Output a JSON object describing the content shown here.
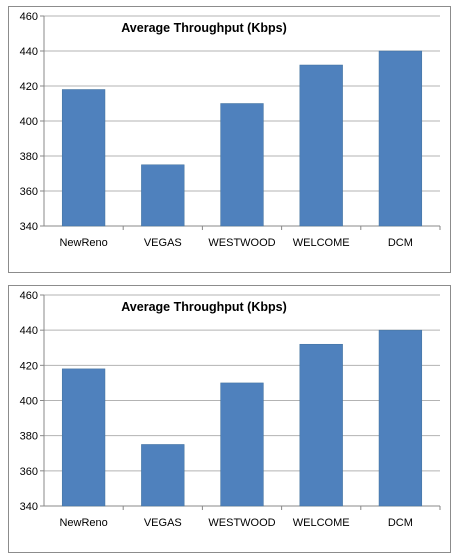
{
  "chart_data": [
    {
      "type": "bar",
      "title": "Average Throughput (Kbps)",
      "categories": [
        "NewReno",
        "VEGAS",
        "WESTWOOD",
        "WELCOME",
        "DCM"
      ],
      "values": [
        418,
        375,
        410,
        432,
        440
      ],
      "ylim": [
        340,
        460
      ],
      "yticks": [
        "340",
        "360",
        "380",
        "400",
        "420",
        "440",
        "460"
      ],
      "grid": true,
      "legend": "none",
      "bar_color": "#4F81BD",
      "grid_color": "#b3b3b3"
    },
    {
      "type": "bar",
      "title": "Average Throughput (Kbps)",
      "categories": [
        "NewReno",
        "VEGAS",
        "WESTWOOD",
        "WELCOME",
        "DCM"
      ],
      "values": [
        418,
        375,
        410,
        432,
        440
      ],
      "ylim": [
        340,
        460
      ],
      "yticks": [
        "340",
        "360",
        "380",
        "400",
        "420",
        "440",
        "460"
      ],
      "grid": true,
      "legend": "none",
      "bar_color": "#4F81BD",
      "grid_color": "#b3b3b3"
    }
  ]
}
